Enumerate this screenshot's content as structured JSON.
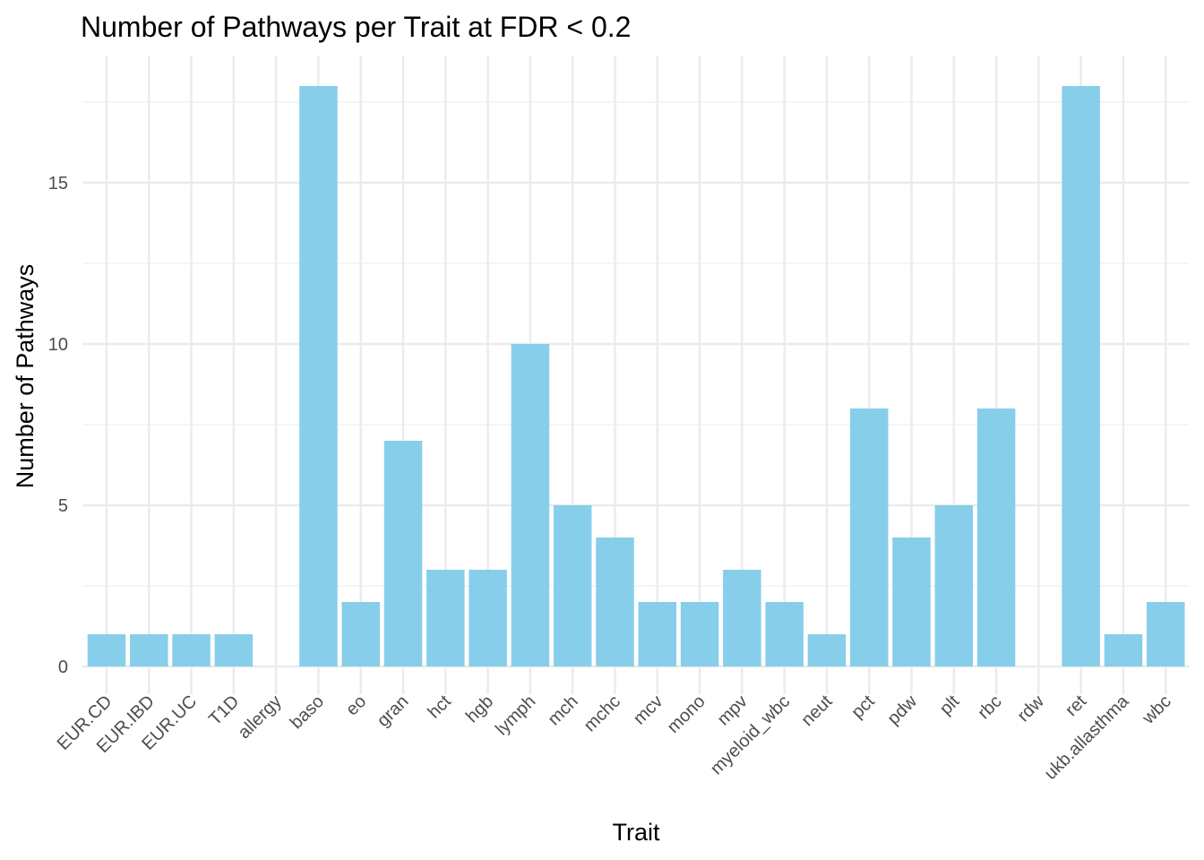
{
  "chart_data": {
    "type": "bar",
    "title": "Number of Pathways per Trait at FDR < 0.2",
    "xlabel": "Trait",
    "ylabel": "Number of Pathways",
    "categories": [
      "EUR.CD",
      "EUR.IBD",
      "EUR.UC",
      "T1D",
      "allergy",
      "baso",
      "eo",
      "gran",
      "hct",
      "hgb",
      "lymph",
      "mch",
      "mchc",
      "mcv",
      "mono",
      "mpv",
      "myeloid_wbc",
      "neut",
      "pct",
      "pdw",
      "plt",
      "rbc",
      "rdw",
      "ret",
      "ukb.allasthma",
      "wbc"
    ],
    "values": [
      1,
      1,
      1,
      1,
      0,
      18,
      2,
      7,
      3,
      3,
      10,
      5,
      4,
      2,
      2,
      3,
      2,
      1,
      8,
      4,
      5,
      8,
      0,
      18,
      1,
      2
    ],
    "ylim": [
      0,
      18
    ],
    "yticks": [
      0,
      5,
      10,
      15
    ],
    "yticks_labels": [
      "0",
      "5",
      "10",
      "15"
    ],
    "bar_color": "#87CEEB",
    "grid": true,
    "legend": "none"
  }
}
